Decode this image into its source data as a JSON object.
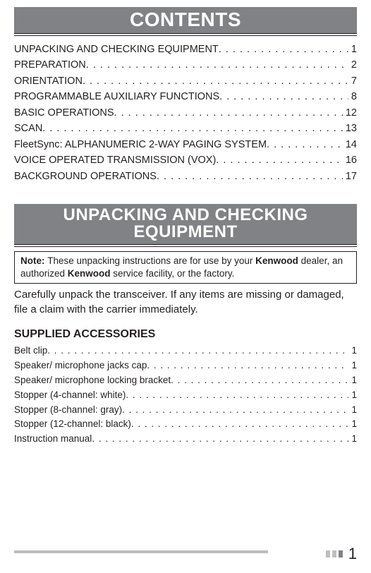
{
  "colors": {
    "bar_bg": "#808285",
    "bar_text": "#ffffff",
    "text": "#231f20",
    "footer_light": "#bcbec0",
    "footer_dark": "#808285"
  },
  "fonts": {
    "body_family": "Arial, Helvetica, sans-serif",
    "heading_family": "Arial Narrow, Arial, sans-serif",
    "contents_size_pt": 21,
    "section_size_pt": 18,
    "toc_size_pt": 11,
    "note_size_pt": 10,
    "body_size_pt": 11,
    "subhead_size_pt": 12,
    "pagenum_size_pt": 16
  },
  "headings": {
    "contents": "CONTENTS",
    "unpacking": "UNPACKING AND CHECKING EQUIPMENT",
    "supplied": "SUPPLIED ACCESSORIES"
  },
  "toc": [
    {
      "label": "UNPACKING AND CHECKING EQUIPMENT",
      "page": "1"
    },
    {
      "label": "PREPARATION",
      "page": "2"
    },
    {
      "label": "ORIENTATION ",
      "page": "7"
    },
    {
      "label": "PROGRAMMABLE AUXILIARY FUNCTIONS ",
      "page": "8"
    },
    {
      "label": "BASIC OPERATIONS",
      "page": "12"
    },
    {
      "label": "SCAN   ",
      "page": "13"
    },
    {
      "label": "FleetSync: ALPHANUMERIC 2-WAY PAGING SYSTEM",
      "page": "14"
    },
    {
      "label": "VOICE OPERATED TRANSMISSION (VOX)",
      "page": "16"
    },
    {
      "label": "BACKGROUND OPERATIONS ",
      "page": "17"
    }
  ],
  "note": {
    "prefix": "Note:  ",
    "part1": "These unpacking instructions are for use by your ",
    "brand1": "Kenwood",
    "part2": " dealer, an authorized ",
    "brand2": "Kenwood",
    "part3": " service facility, or the factory."
  },
  "body": "Carefully unpack the transceiver.  If any items are missing or damaged, file a claim with the carrier immediately.",
  "accessories": [
    {
      "label": "Belt clip",
      "qty": "1"
    },
    {
      "label": "Speaker/ microphone jacks cap ",
      "qty": "1"
    },
    {
      "label": "Speaker/ microphone locking bracket",
      "qty": "1"
    },
    {
      "label": "Stopper (4-channel:  white)",
      "qty": "1"
    },
    {
      "label": "Stopper (8-channel:  gray)",
      "qty": "1"
    },
    {
      "label": "Stopper (12-channel:  black)",
      "qty": "1"
    },
    {
      "label": "Instruction manual",
      "qty": "1"
    }
  ],
  "page_number": "1"
}
